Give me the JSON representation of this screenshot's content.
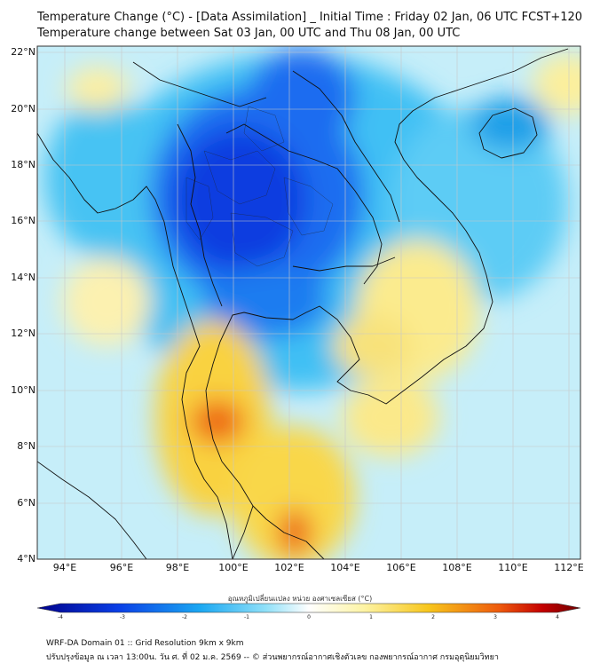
{
  "title_line1": "Temperature Change (°C) - [Data Assimilation] _ Initial Time : Friday 02 Jan, 06 UTC FCST+120",
  "title_line2": "Temperature change between Sat 03 Jan, 00 UTC and Thu 08 Jan, 00 UTC",
  "lat_labels": [
    "22°N",
    "20°N",
    "18°N",
    "16°N",
    "14°N",
    "12°N",
    "10°N",
    "8°N",
    "6°N",
    "4°N"
  ],
  "lon_labels": [
    "94°E",
    "96°E",
    "98°E",
    "100°E",
    "102°E",
    "104°E",
    "106°E",
    "108°E",
    "110°E",
    "112°E"
  ],
  "colorbar_title": "อุณหภูมิเปลี่ยนแปลง หน่วย องศาเซลเซียส (°C)",
  "colorbar_ticks": [
    "-4",
    "-3",
    "-2",
    "-1",
    "0",
    "1",
    "2",
    "3",
    "4"
  ],
  "footer_line1": "WRF-DA Domain 01 :: Grid Resolution 9km x 9km",
  "footer_line2": "ปรับปรุงข้อมูล ณ เวลา 13:00น. วัน ศ. ที่ 02 ม.ค. 2569 -- © ส่วนพยากรณ์อากาศเชิงตัวเลข กองพยากรณ์อากาศ กรมอุตุนิยมวิทยา",
  "colors": {
    "cold_extreme": "#00008b",
    "cold_strong": "#0a3fe6",
    "cold": "#1ba8f2",
    "cool": "#8fe0f8",
    "neutral": "#ffffff",
    "warm_light": "#fdf4a6",
    "warm": "#f7c61c",
    "hot": "#ee5a0c",
    "hot_extreme": "#6e0000",
    "coastline": "#111111",
    "grid": "#c8c8c8"
  }
}
